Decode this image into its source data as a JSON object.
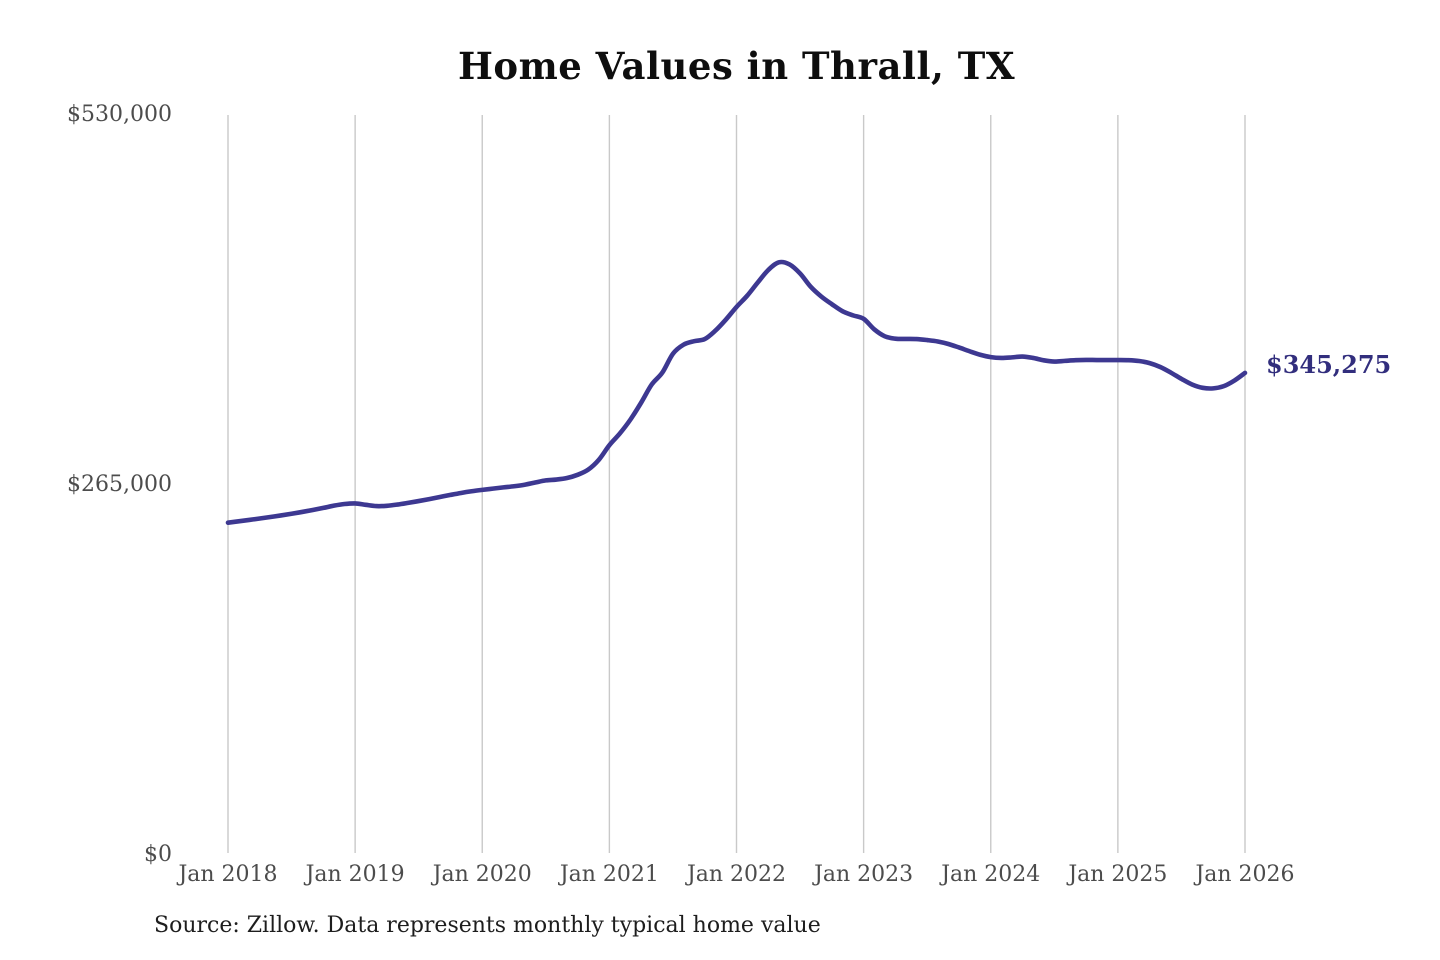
{
  "title": "Home Values in Thrall, TX",
  "source_note": "Source: Zillow. Data represents monthly typical home value",
  "end_label": "$345,275",
  "colors": {
    "background": "#ffffff",
    "title_text": "#0e0e0e",
    "tick_text": "#4c4c4c",
    "gridline": "#c9c9c9",
    "line": "#3d3891",
    "end_label_text": "#322e7d",
    "source_text": "#1d1d1d"
  },
  "chart_data": {
    "type": "line",
    "title": "Home Values in Thrall, TX",
    "xlabel": "",
    "ylabel": "",
    "ylim": [
      0,
      530000
    ],
    "grid": "vertical-only",
    "legend": "none",
    "frequency": "monthly",
    "x_range": [
      "Jan 2018",
      "Jan 2026"
    ],
    "x_tick_labels": [
      "Jan 2018",
      "Jan 2019",
      "Jan 2020",
      "Jan 2021",
      "Jan 2022",
      "Jan 2023",
      "Jan 2024",
      "Jan 2025",
      "Jan 2026"
    ],
    "y_ticks": [
      {
        "label": "$0",
        "value": 0
      },
      {
        "label": "$265,000",
        "value": 265000
      },
      {
        "label": "$530,000",
        "value": 530000
      }
    ],
    "final_value": 345275,
    "final_value_label": "$345,275",
    "series": [
      {
        "name": "Typical home value",
        "values": [
          238000,
          239000,
          240000,
          241000,
          242100,
          243200,
          244400,
          245700,
          247100,
          248600,
          250200,
          251400,
          251800,
          250800,
          249900,
          250100,
          251000,
          252200,
          253500,
          254900,
          256400,
          257900,
          259300,
          260500,
          261500,
          262400,
          263300,
          264100,
          265200,
          266800,
          268300,
          268900,
          270000,
          272300,
          276000,
          283000,
          293500,
          302000,
          312000,
          324000,
          337000,
          345500,
          359000,
          365500,
          368000,
          369500,
          375500,
          383500,
          392500,
          400500,
          410000,
          419000,
          424500,
          423000,
          416500,
          407000,
          400000,
          394500,
          389500,
          386500,
          384000,
          376500,
          371500,
          369800,
          369600,
          369500,
          368800,
          367800,
          366000,
          363500,
          360800,
          358300,
          356600,
          356000,
          356400,
          357000,
          356000,
          354300,
          353400,
          353900,
          354400,
          354600,
          354500,
          354500,
          354500,
          354400,
          353800,
          352300,
          349500,
          345500,
          341000,
          337000,
          334600,
          334200,
          335800,
          339800,
          345275
        ]
      }
    ]
  }
}
